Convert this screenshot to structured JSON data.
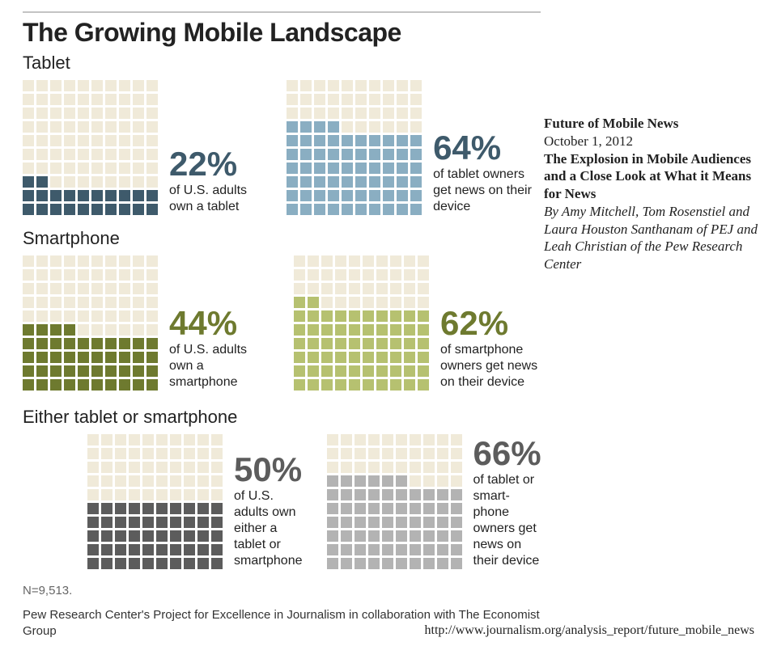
{
  "header": {
    "title": "The Growing Mobile Landscape"
  },
  "colors": {
    "bg_cell": "#f0ead9",
    "tablet_dark": "#3e5a6b",
    "tablet_light": "#8aaec2",
    "phone_dark": "#6e7a2f",
    "phone_light": "#b6c170",
    "either_dark": "#5c5c5c",
    "either_light": "#b3b3b3",
    "pct_tablet": "#3e5a6b",
    "pct_phone": "#6e7a2f",
    "pct_either": "#5c5c5c"
  },
  "tablet": {
    "section_label": "Tablet",
    "left": {
      "pct": "22%",
      "caption": "of U.S. adults own a tablet",
      "fill": 22
    },
    "right": {
      "pct": "64%",
      "caption": "of tablet owners get news on their device",
      "fill": 64
    }
  },
  "smartphone": {
    "section_label": "Smartphone",
    "left": {
      "pct": "44%",
      "caption": "of U.S. adults own a smartphone",
      "fill": 44
    },
    "right": {
      "pct": "62%",
      "caption": "of smartphone owners get news on their device",
      "fill": 62
    }
  },
  "either": {
    "section_label": "Either tablet or smartphone",
    "left": {
      "pct": "50%",
      "caption": "of U.S. adults own either a tablet or smartphone",
      "fill": 50
    },
    "right": {
      "pct": "66%",
      "caption": "of tablet or smart-\nphone owners get news on their device",
      "fill": 66
    }
  },
  "note": "N=9,513.",
  "credits": "Pew Research Center's Project for Excellence in Journalism in collaboration with The Economist Group",
  "right_panel": {
    "l1": "Future of Mobile News",
    "l2": "October 1, 2012",
    "l3": "The Explosion in Mobile Audiences and a Close Look at What it Means for News",
    "l4": "By Amy Mitchell, Tom Rosenstiel and Laura Houston Santhanam of PEJ and Leah Christian of the Pew Research Center"
  },
  "footer_url": "http://www.journalism.org/analysis_report/future_mobile_news",
  "waffle": {
    "cols": 10,
    "rows": 10
  }
}
